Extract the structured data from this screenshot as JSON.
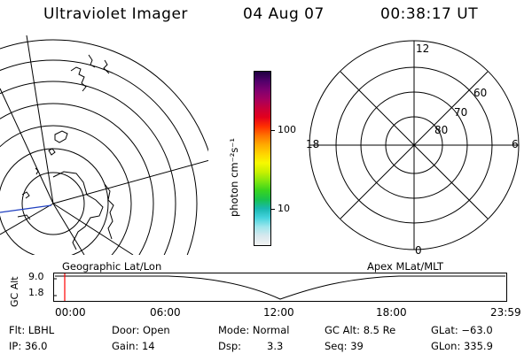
{
  "header": {
    "title": "Ultraviolet Imager",
    "date": "04 Aug 07",
    "time": "00:38:17 UT"
  },
  "colorbar": {
    "unit_label": "photon cm⁻²s⁻¹",
    "tick_100": "100",
    "tick_10": "10",
    "colors": [
      "#f2f2f2",
      "#d8e8ee",
      "#9fe6ec",
      "#45d3dd",
      "#19b8b0",
      "#18c24e",
      "#39d41e",
      "#7fe60f",
      "#c8f000",
      "#f7f900",
      "#ffd400",
      "#ffaa00",
      "#ff7300",
      "#ff3000",
      "#e3001c",
      "#c8003a",
      "#a40060",
      "#7d0070",
      "#50006a",
      "#1e0040"
    ]
  },
  "polar_plot": {
    "mlt_labels": {
      "top": "12",
      "left": "18",
      "right": "6",
      "bottom": "0"
    },
    "lat_labels": [
      "60",
      "70",
      "80"
    ]
  },
  "timeline": {
    "left_label": "Geographic Lat/Lon",
    "right_label": "Apex MLat/MLT",
    "axis_label": "GC Alt",
    "y_ticks": [
      "9.0",
      "1.8"
    ],
    "x_ticks": [
      "00:00",
      "06:00",
      "12:00",
      "18:00",
      "23:59"
    ],
    "marker_color": "#ff0000"
  },
  "info": {
    "filter": "Flt: LBHL",
    "ip": "IP: 36.0",
    "door": "Door: Open",
    "gain": "Gain: 14",
    "mode": "Mode: Normal",
    "dsp_label": "Dsp:",
    "dsp_value": "3.3",
    "gc_alt": "GC Alt: 8.5 Re",
    "seq": "Seq: 39",
    "glat": "GLat: −63.0",
    "glon": "GLon: 335.9"
  }
}
